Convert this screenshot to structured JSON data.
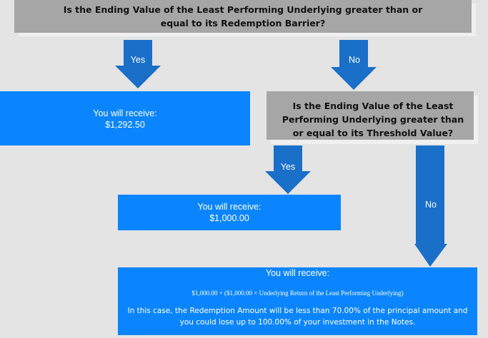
{
  "question_1": "Is the Ending Value of the Least Performing Underlying greater than or equal to its Redemption Barrier?",
  "question_2": "Is the Ending Value of the Least Performing Underlying greater than or equal to its Threshold Value?",
  "arrows": {
    "q1_yes": "Yes",
    "q1_no": "No",
    "q2_yes": "Yes",
    "q2_no": "No"
  },
  "outcome_1": {
    "label": "You will receive:",
    "amount": "$1,292.50"
  },
  "outcome_2": {
    "label": "You will receive:",
    "amount": "$1,000.00"
  },
  "outcome_3": {
    "label": "You will receive:",
    "formula": "$1,000.00 + ($1,000.00 × Underlying Return of the Least Performing Underlying)",
    "note": "In this case, the Redemption Amount will be less than 70.00% of the principal amount and you could lose up to 100.00% of your investment in the Notes."
  },
  "colors": {
    "background": "#e4e4e4",
    "question_box": "#a6a6a6",
    "outcome_box": "#0a85ff",
    "arrow": "#1a6fc9"
  }
}
